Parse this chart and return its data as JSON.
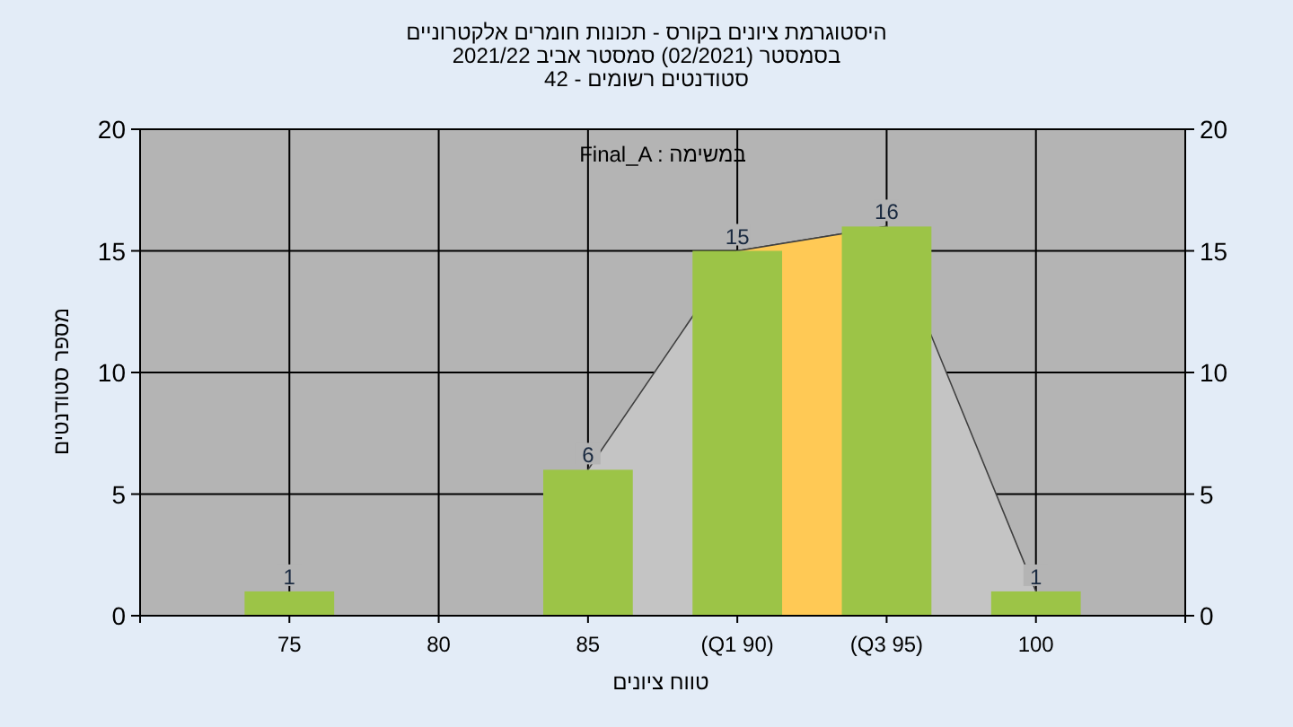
{
  "chart_data": {
    "type": "bar",
    "title": "היסטוגרמת ציונים בקורס - תכונות חומרים אלקטרוניים",
    "subtitle": "בסמסטר (02/2021) סמסטר אביב 2021/22",
    "annotations": [
      "סטודנטים רשומים - 42",
      "Final_A : במשימה"
    ],
    "xlabel": "טווח ציונים",
    "ylabel": "מספר סטודנטים",
    "categories": [
      "75",
      "80",
      "85",
      "(Q1 90)",
      "(Q3 95)",
      "100"
    ],
    "series": [
      {
        "color": "#9cc447",
        "values": [
          1,
          0,
          6,
          15,
          16,
          1
        ],
        "value_labels": [
          "1",
          null,
          "6",
          "15",
          "16",
          "1"
        ]
      },
      {
        "type": "area",
        "color": "#c4c4c4",
        "values": [
          null,
          null,
          6,
          15,
          16,
          1
        ]
      },
      {
        "type": "area",
        "color": "#ffc955",
        "values": [
          null,
          null,
          null,
          15,
          16,
          null
        ]
      }
    ],
    "ylim": [
      0,
      20
    ],
    "yticks": [
      0,
      5,
      10,
      15,
      20
    ],
    "y2lim": [
      0,
      20
    ],
    "y2ticks": [
      0,
      5,
      10,
      15,
      20
    ],
    "grid": true
  }
}
